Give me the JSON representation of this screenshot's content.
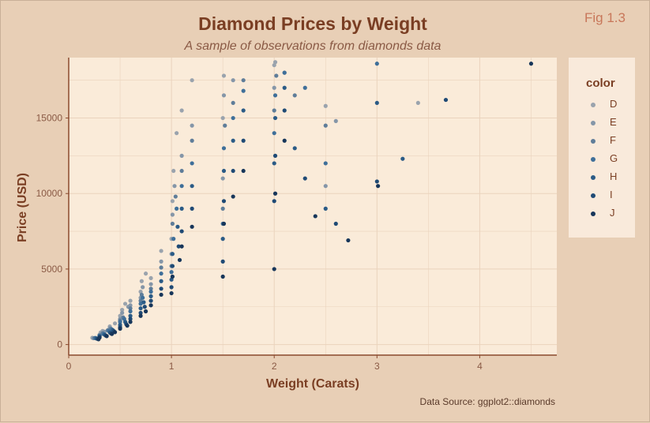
{
  "figure": {
    "tag": "Fig 1.3",
    "caption": "Data Source: ggplot2::diamonds"
  },
  "chart_data": {
    "type": "scatter",
    "title": "Diamond Prices by Weight",
    "subtitle": "A sample of observations from diamonds data",
    "xlabel": "Weight (Carats)",
    "ylabel": "Price (USD)",
    "xlim": [
      0,
      4.75
    ],
    "ylim": [
      -700,
      19000
    ],
    "x_ticks": [
      0,
      1,
      2,
      3,
      4
    ],
    "x_tick_labels": [
      "0",
      "1",
      "2",
      "3",
      "4"
    ],
    "y_ticks": [
      0,
      5000,
      10000,
      15000
    ],
    "y_tick_labels": [
      "0",
      "5000",
      "10000",
      "15000"
    ],
    "grid": true,
    "legend": {
      "title": "color",
      "position": "right",
      "entries": [
        {
          "label": "D",
          "color": "#9aa3ad"
        },
        {
          "label": "E",
          "color": "#8596a8"
        },
        {
          "label": "F",
          "color": "#5f7d99"
        },
        {
          "label": "G",
          "color": "#3f6f99"
        },
        {
          "label": "H",
          "color": "#2b5b86"
        },
        {
          "label": "I",
          "color": "#1f4a75"
        },
        {
          "label": "J",
          "color": "#17365a"
        }
      ]
    },
    "series": [
      {
        "name": "D",
        "x": [
          0.23,
          0.3,
          0.31,
          0.33,
          0.4,
          0.45,
          0.5,
          0.52,
          0.55,
          0.6,
          0.7,
          0.71,
          0.75,
          0.8,
          0.9,
          1.0,
          1.01,
          1.02,
          1.05,
          1.1,
          1.2,
          1.5,
          1.51,
          2.0,
          2.01,
          2.5,
          3.4
        ],
        "y": [
          450,
          650,
          800,
          900,
          1200,
          1400,
          1900,
          2300,
          2700,
          2900,
          3500,
          4200,
          4700,
          4400,
          6200,
          7000,
          9500,
          11500,
          14000,
          15500,
          17500,
          15000,
          17800,
          18500,
          18700,
          15800,
          16000
        ]
      },
      {
        "name": "E",
        "x": [
          0.24,
          0.3,
          0.32,
          0.35,
          0.4,
          0.5,
          0.52,
          0.58,
          0.6,
          0.7,
          0.72,
          0.8,
          0.9,
          1.0,
          1.01,
          1.03,
          1.1,
          1.2,
          1.5,
          1.51,
          1.6,
          2.0,
          2.1,
          2.5,
          2.6
        ],
        "y": [
          420,
          600,
          700,
          850,
          1100,
          1700,
          2100,
          2500,
          2600,
          3100,
          3800,
          4000,
          5500,
          6000,
          8600,
          10500,
          12500,
          14500,
          11000,
          16500,
          17500,
          17000,
          18000,
          10500,
          14800
        ]
      },
      {
        "name": "F",
        "x": [
          0.25,
          0.3,
          0.33,
          0.38,
          0.41,
          0.5,
          0.53,
          0.6,
          0.7,
          0.71,
          0.8,
          0.9,
          1.0,
          1.01,
          1.04,
          1.1,
          1.2,
          1.5,
          1.52,
          1.6,
          1.7,
          2.0,
          2.02,
          2.2,
          2.5
        ],
        "y": [
          430,
          620,
          760,
          950,
          1050,
          1600,
          1800,
          2400,
          2900,
          3300,
          3700,
          5100,
          5200,
          8000,
          9800,
          11500,
          13500,
          9000,
          14500,
          16000,
          17500,
          15500,
          17800,
          16500,
          14500
        ]
      },
      {
        "name": "G",
        "x": [
          0.26,
          0.3,
          0.34,
          0.39,
          0.42,
          0.5,
          0.54,
          0.6,
          0.7,
          0.72,
          0.8,
          0.9,
          1.0,
          1.02,
          1.05,
          1.1,
          1.2,
          1.5,
          1.51,
          1.6,
          1.7,
          2.0,
          2.01,
          2.1,
          2.3,
          2.5,
          3.0
        ],
        "y": [
          440,
          580,
          700,
          900,
          1000,
          1500,
          1700,
          2200,
          2700,
          3100,
          3500,
          4700,
          4800,
          7000,
          9000,
          10500,
          12000,
          8000,
          13000,
          15000,
          16800,
          14000,
          16500,
          18000,
          17000,
          12000,
          18600
        ]
      },
      {
        "name": "H",
        "x": [
          0.27,
          0.3,
          0.35,
          0.4,
          0.43,
          0.5,
          0.55,
          0.6,
          0.7,
          0.73,
          0.8,
          0.9,
          1.0,
          1.01,
          1.06,
          1.1,
          1.2,
          1.5,
          1.51,
          1.6,
          1.7,
          2.0,
          2.01,
          2.1,
          2.2,
          2.5,
          3.0,
          3.25
        ],
        "y": [
          400,
          550,
          650,
          800,
          950,
          1300,
          1500,
          1900,
          2400,
          2800,
          3200,
          4200,
          4300,
          6000,
          7800,
          9000,
          10500,
          7000,
          11500,
          13500,
          15500,
          12000,
          15000,
          17000,
          13000,
          9000,
          16000,
          12300
        ]
      },
      {
        "name": "I",
        "x": [
          0.28,
          0.3,
          0.36,
          0.41,
          0.44,
          0.5,
          0.56,
          0.6,
          0.7,
          0.74,
          0.8,
          0.9,
          1.0,
          1.01,
          1.07,
          1.1,
          1.2,
          1.5,
          1.51,
          1.6,
          1.7,
          2.0,
          2.01,
          2.1,
          2.3,
          2.6,
          3.0,
          3.67
        ],
        "y": [
          380,
          500,
          600,
          750,
          880,
          1150,
          1350,
          1700,
          2100,
          2500,
          2900,
          3700,
          3800,
          5200,
          6500,
          7500,
          9000,
          5500,
          9500,
          11500,
          13500,
          9500,
          12500,
          15500,
          11000,
          8000,
          10800,
          16200
        ]
      },
      {
        "name": "J",
        "x": [
          0.29,
          0.3,
          0.37,
          0.42,
          0.45,
          0.5,
          0.57,
          0.6,
          0.7,
          0.75,
          0.8,
          0.9,
          1.0,
          1.01,
          1.08,
          1.1,
          1.2,
          1.5,
          1.51,
          1.6,
          1.7,
          2.0,
          2.01,
          2.1,
          2.4,
          2.72,
          3.01,
          4.5
        ],
        "y": [
          350,
          460,
          560,
          700,
          820,
          1050,
          1250,
          1500,
          1900,
          2200,
          2600,
          3300,
          3400,
          4500,
          5600,
          6500,
          7800,
          4500,
          8000,
          9800,
          11500,
          5000,
          10000,
          13500,
          8500,
          6900,
          10500,
          18600
        ]
      }
    ]
  }
}
